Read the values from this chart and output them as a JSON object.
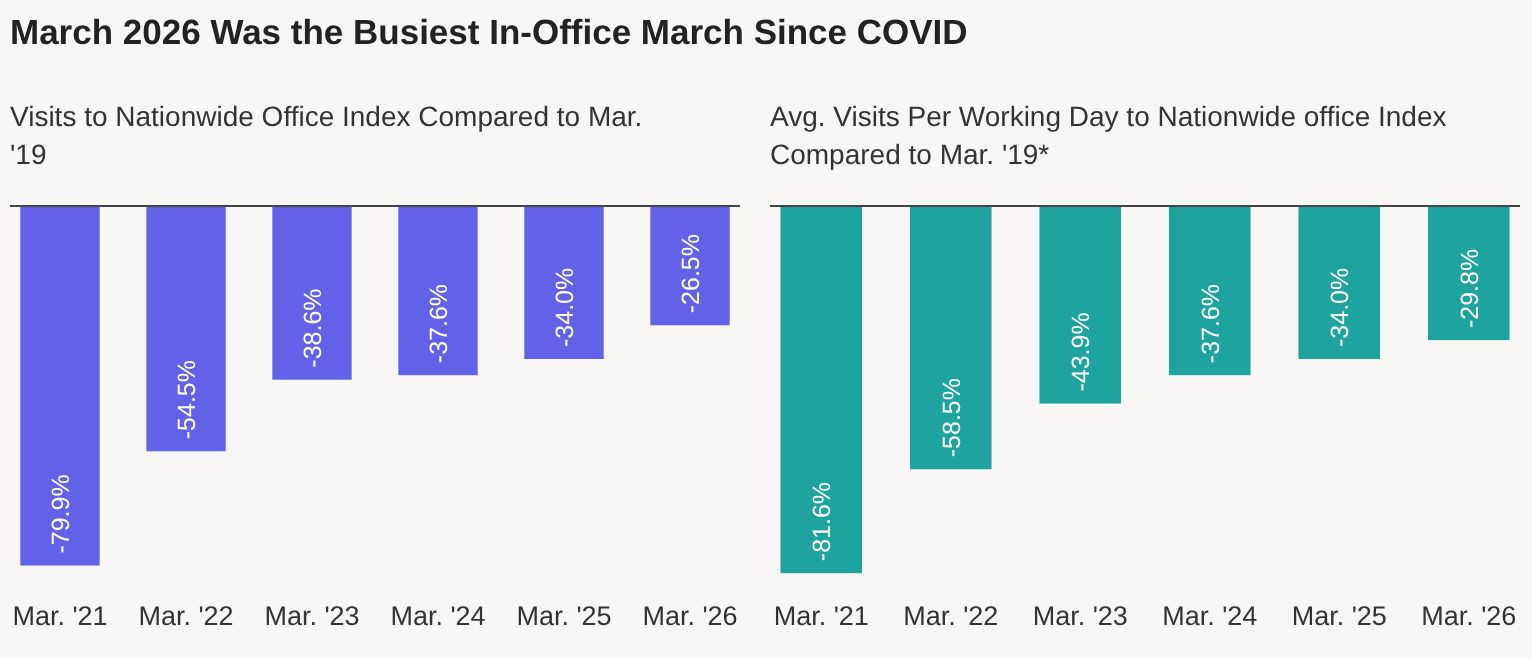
{
  "chart_data": [
    {
      "type": "bar",
      "title": "March 2026 Was the Busiest In-Office March Since COVID",
      "subtitle": "Visits to Nationwide Office Index Compared to Mar. '19",
      "categories": [
        "Mar. '21",
        "Mar. '22",
        "Mar. '23",
        "Mar. '24",
        "Mar. '25",
        "Mar. '26"
      ],
      "values": [
        -79.9,
        -54.5,
        -38.6,
        -37.6,
        -34.0,
        -26.5
      ],
      "value_labels": [
        "-79.9%",
        "-54.5%",
        "-38.6%",
        "-37.6%",
        "-34.0%",
        "-26.5%"
      ],
      "color": "#6262e8",
      "tick_labels": "x"
    },
    {
      "type": "bar",
      "subtitle": "Avg. Visits Per Working Day to Nationwide office Index Compared to Mar. '19*",
      "categories": [
        "Mar. '21",
        "Mar. '22",
        "Mar. '23",
        "Mar. '24",
        "Mar. '25",
        "Mar. '26"
      ],
      "values": [
        -81.6,
        -58.5,
        -43.9,
        -37.6,
        -34.0,
        -29.8
      ],
      "value_labels": [
        "-81.6%",
        "-58.5%",
        "-43.9%",
        "-37.6%",
        "-34.0%",
        "-29.8%"
      ],
      "color": "#1ea39f",
      "tick_labels": "x"
    }
  ]
}
